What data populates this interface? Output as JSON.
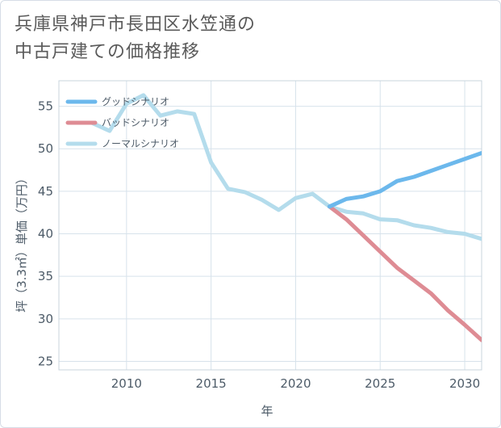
{
  "title_line1": "兵庫県神戸市長田区水笠通の",
  "title_line2": "中古戸建ての価格推移",
  "chart_data": {
    "type": "line",
    "title": "兵庫県神戸市長田区水笠通の中古戸建ての価格推移",
    "xlabel": "年",
    "ylabel": "坪（3.3㎡）単価（万円）",
    "xlim": [
      2006,
      2031
    ],
    "ylim": [
      24,
      58
    ],
    "x_ticks": [
      "2010",
      "2015",
      "2020",
      "2025",
      "2030"
    ],
    "y_ticks": [
      "25",
      "30",
      "35",
      "40",
      "45",
      "50",
      "55"
    ],
    "grid": true,
    "legend_position": "top-left",
    "series": [
      {
        "name": "グッドシナリオ",
        "color": "#6cb8ec",
        "points": [
          [
            2022,
            43.2
          ],
          [
            2023,
            44.1
          ],
          [
            2024,
            44.4
          ],
          [
            2025,
            45.0
          ],
          [
            2026,
            46.2
          ],
          [
            2027,
            46.7
          ],
          [
            2028,
            47.4
          ],
          [
            2029,
            48.1
          ],
          [
            2030,
            48.8
          ],
          [
            2031,
            49.5
          ]
        ]
      },
      {
        "name": "バッドシナリオ",
        "color": "#de8c94",
        "points": [
          [
            2022,
            43.2
          ],
          [
            2023,
            41.7
          ],
          [
            2024,
            39.8
          ],
          [
            2025,
            37.9
          ],
          [
            2026,
            36.0
          ],
          [
            2027,
            34.5
          ],
          [
            2028,
            33.0
          ],
          [
            2029,
            31.0
          ],
          [
            2030,
            29.3
          ],
          [
            2031,
            27.5
          ]
        ]
      },
      {
        "name": "ノーマルシナリオ",
        "color": "#b4dcec",
        "points": [
          [
            2008,
            53.0
          ],
          [
            2009,
            52.1
          ],
          [
            2010,
            55.3
          ],
          [
            2011,
            56.3
          ],
          [
            2012,
            53.9
          ],
          [
            2013,
            54.4
          ],
          [
            2014,
            54.1
          ],
          [
            2015,
            48.4
          ],
          [
            2016,
            45.3
          ],
          [
            2017,
            44.9
          ],
          [
            2018,
            44.0
          ],
          [
            2019,
            42.8
          ],
          [
            2020,
            44.2
          ],
          [
            2021,
            44.7
          ],
          [
            2022,
            43.2
          ],
          [
            2023,
            42.6
          ],
          [
            2024,
            42.4
          ],
          [
            2025,
            41.7
          ],
          [
            2026,
            41.6
          ],
          [
            2027,
            41.0
          ],
          [
            2028,
            40.7
          ],
          [
            2029,
            40.2
          ],
          [
            2030,
            40.0
          ],
          [
            2031,
            39.4
          ]
        ]
      }
    ]
  }
}
